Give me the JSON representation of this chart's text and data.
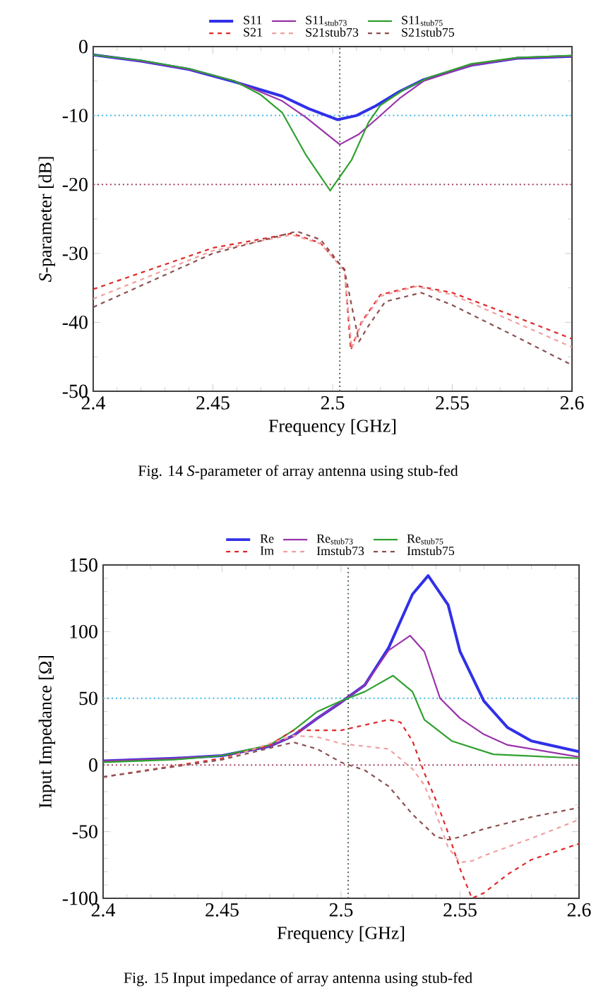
{
  "chart_data": [
    {
      "type": "line",
      "xlabel": "Frequency [GHz]",
      "ylabel": "*S*-parameter [dB]",
      "annotations": [
        "Fig. 14 *S*-parameter of array antenna using stub-fed"
      ],
      "xlim": [
        2.4,
        2.6
      ],
      "ylim": [
        -50,
        0
      ],
      "xticks": [
        2.4,
        2.45,
        2.5,
        2.55,
        2.6
      ],
      "yticks": [
        -50,
        -40,
        -30,
        -20,
        -10,
        0
      ],
      "legend": "top",
      "grid": false,
      "ref_lines": [
        {
          "axis": "y",
          "value": -10,
          "color": "#40b8e0",
          "line_style": "dotted"
        },
        {
          "axis": "y",
          "value": -20,
          "color": "#a04060",
          "line_style": "dotted"
        },
        {
          "axis": "x",
          "value": 2.503,
          "color": "#506850",
          "line_style": "dotted"
        }
      ],
      "series": [
        {
          "name": "S11",
          "color": "#3030e8",
          "line_style": "solid",
          "x": [
            2.4,
            2.42,
            2.44,
            2.459,
            2.479,
            2.49,
            2.502,
            2.51,
            2.518,
            2.528,
            2.538,
            2.558,
            2.577,
            2.6
          ],
          "values": [
            -1.2,
            -2.1,
            -3.3,
            -5.1,
            -7.2,
            -9.0,
            -10.6,
            -10.0,
            -8.6,
            -6.5,
            -4.8,
            -2.7,
            -1.7,
            -1.4
          ]
        },
        {
          "name": "S11$_{stub73}$",
          "color": "#9933aa",
          "line_style": "solid",
          "x": [
            2.4,
            2.42,
            2.44,
            2.459,
            2.479,
            2.489,
            2.503,
            2.511,
            2.518,
            2.528,
            2.538,
            2.558,
            2.577,
            2.6
          ],
          "values": [
            -1.2,
            -2.1,
            -3.3,
            -5.0,
            -7.9,
            -10.3,
            -14.2,
            -12.7,
            -10.6,
            -7.5,
            -5.0,
            -2.7,
            -1.7,
            -1.4
          ]
        },
        {
          "name": "S11$_{stub75}$",
          "color": "#30a030",
          "line_style": "solid",
          "x": [
            2.4,
            2.42,
            2.44,
            2.459,
            2.47,
            2.479,
            2.489,
            2.499,
            2.508,
            2.515,
            2.52,
            2.53,
            2.54,
            2.558,
            2.577,
            2.6
          ],
          "values": [
            -1.2,
            -2.0,
            -3.2,
            -5.0,
            -7.0,
            -9.6,
            -15.8,
            -20.9,
            -16.4,
            -11.0,
            -8.5,
            -6.2,
            -4.5,
            -2.5,
            -1.6,
            -1.3
          ]
        },
        {
          "name": "S21",
          "color": "#e02828",
          "line_style": "dashed",
          "x": [
            2.4,
            2.45,
            2.483,
            2.495,
            2.5,
            2.505,
            2.5076,
            2.512,
            2.52,
            2.535,
            2.55,
            2.575,
            2.6
          ],
          "values": [
            -35.2,
            -29.2,
            -27.1,
            -28.5,
            -30.5,
            -32.3,
            -44.0,
            -40.0,
            -36.0,
            -34.7,
            -35.7,
            -39.0,
            -42.4
          ]
        },
        {
          "name": "S21stub73",
          "color": "#f0a0a0",
          "line_style": "dashed",
          "x": [
            2.4,
            2.45,
            2.483,
            2.495,
            2.5,
            2.505,
            2.508,
            2.512,
            2.52,
            2.535,
            2.55,
            2.575,
            2.6
          ],
          "values": [
            -36.6,
            -29.6,
            -27.3,
            -28.6,
            -30.6,
            -32.5,
            -43.8,
            -40.2,
            -36.2,
            -34.8,
            -36.0,
            -39.8,
            -43.6
          ]
        },
        {
          "name": "S21stub75",
          "color": "#8a5050",
          "line_style": "dashed",
          "x": [
            2.4,
            2.45,
            2.485,
            2.495,
            2.5,
            2.505,
            2.511,
            2.515,
            2.522,
            2.537,
            2.55,
            2.575,
            2.6
          ],
          "values": [
            -37.8,
            -30.0,
            -26.8,
            -28.0,
            -30.2,
            -32.5,
            -42.8,
            -40.5,
            -37.0,
            -35.7,
            -37.5,
            -41.8,
            -46.2
          ]
        }
      ]
    },
    {
      "type": "line",
      "xlabel": "Frequency [GHz]",
      "ylabel": "Input Impedance [Ω]",
      "annotations": [
        "Fig. 15 Input impedance of array antenna using stub-fed"
      ],
      "xlim": [
        2.4,
        2.6
      ],
      "ylim": [
        -100,
        150
      ],
      "xticks": [
        2.4,
        2.45,
        2.5,
        2.55,
        2.6
      ],
      "yticks": [
        -100,
        -50,
        0,
        50,
        100,
        150
      ],
      "legend": "top",
      "grid": false,
      "ref_lines": [
        {
          "axis": "y",
          "value": 50,
          "color": "#40b8e0",
          "line_style": "dotted"
        },
        {
          "axis": "y",
          "value": 0,
          "color": "#a04060",
          "line_style": "dotted"
        },
        {
          "axis": "x",
          "value": 2.503,
          "color": "#506850",
          "line_style": "dotted"
        }
      ],
      "series": [
        {
          "name": "Re",
          "color": "#3030e8",
          "line_style": "solid",
          "x": [
            2.4,
            2.43,
            2.45,
            2.47,
            2.48,
            2.49,
            2.5,
            2.51,
            2.52,
            2.53,
            2.5366,
            2.545,
            2.55,
            2.56,
            2.57,
            2.58,
            2.6
          ],
          "values": [
            3,
            5,
            7,
            14,
            22,
            35,
            47,
            60,
            88,
            128,
            142,
            120,
            85,
            48,
            28,
            18,
            10
          ]
        },
        {
          "name": "Re$_{stub73}$",
          "color": "#9933aa",
          "line_style": "solid",
          "x": [
            2.4,
            2.43,
            2.45,
            2.47,
            2.48,
            2.49,
            2.5,
            2.51,
            2.52,
            2.529,
            2.535,
            2.5416,
            2.55,
            2.56,
            2.57,
            2.6
          ],
          "values": [
            3,
            5,
            7,
            14,
            22,
            35,
            47,
            60,
            86,
            97,
            85,
            50,
            35,
            23,
            15,
            6
          ]
        },
        {
          "name": "Re$_{stub75}$",
          "color": "#30a030",
          "line_style": "solid",
          "x": [
            2.4,
            2.43,
            2.45,
            2.47,
            2.48,
            2.49,
            2.5,
            2.51,
            2.5218,
            2.53,
            2.535,
            2.5465,
            2.564,
            2.6
          ],
          "values": [
            2,
            4,
            7,
            15,
            26,
            40,
            48,
            55,
            67,
            55,
            34,
            18,
            8,
            5
          ]
        },
        {
          "name": "Im",
          "color": "#e02828",
          "line_style": "dashed",
          "x": [
            2.4,
            2.45,
            2.47,
            2.48,
            2.5,
            2.52,
            2.525,
            2.53,
            2.535,
            2.54,
            2.545,
            2.55,
            2.555,
            2.56,
            2.57,
            2.58,
            2.6
          ],
          "values": [
            -9,
            5,
            15,
            26,
            26,
            34,
            32,
            18,
            -6,
            -27,
            -51,
            -78,
            -100,
            -96,
            -82,
            -71,
            -59
          ]
        },
        {
          "name": "Imstub73",
          "color": "#f0a0a0",
          "line_style": "dashed",
          "x": [
            2.4,
            2.45,
            2.48,
            2.49,
            2.5,
            2.51,
            2.52,
            2.53,
            2.535,
            2.54,
            2.545,
            2.55,
            2.555,
            2.56,
            2.58,
            2.6
          ],
          "values": [
            -9,
            4,
            22,
            21,
            16,
            14,
            12,
            -3,
            -15,
            -37,
            -62,
            -73,
            -72,
            -68,
            -55,
            -41
          ]
        },
        {
          "name": "Imstub75",
          "color": "#8a5050",
          "line_style": "dashed",
          "x": [
            2.4,
            2.45,
            2.48,
            2.49,
            2.5,
            2.51,
            2.52,
            2.53,
            2.54,
            2.545,
            2.55,
            2.56,
            2.58,
            2.6
          ],
          "values": [
            -9,
            4,
            17,
            12,
            2,
            -4,
            -16,
            -37,
            -54,
            -56,
            -54,
            -48,
            -39,
            -32
          ]
        }
      ]
    }
  ]
}
